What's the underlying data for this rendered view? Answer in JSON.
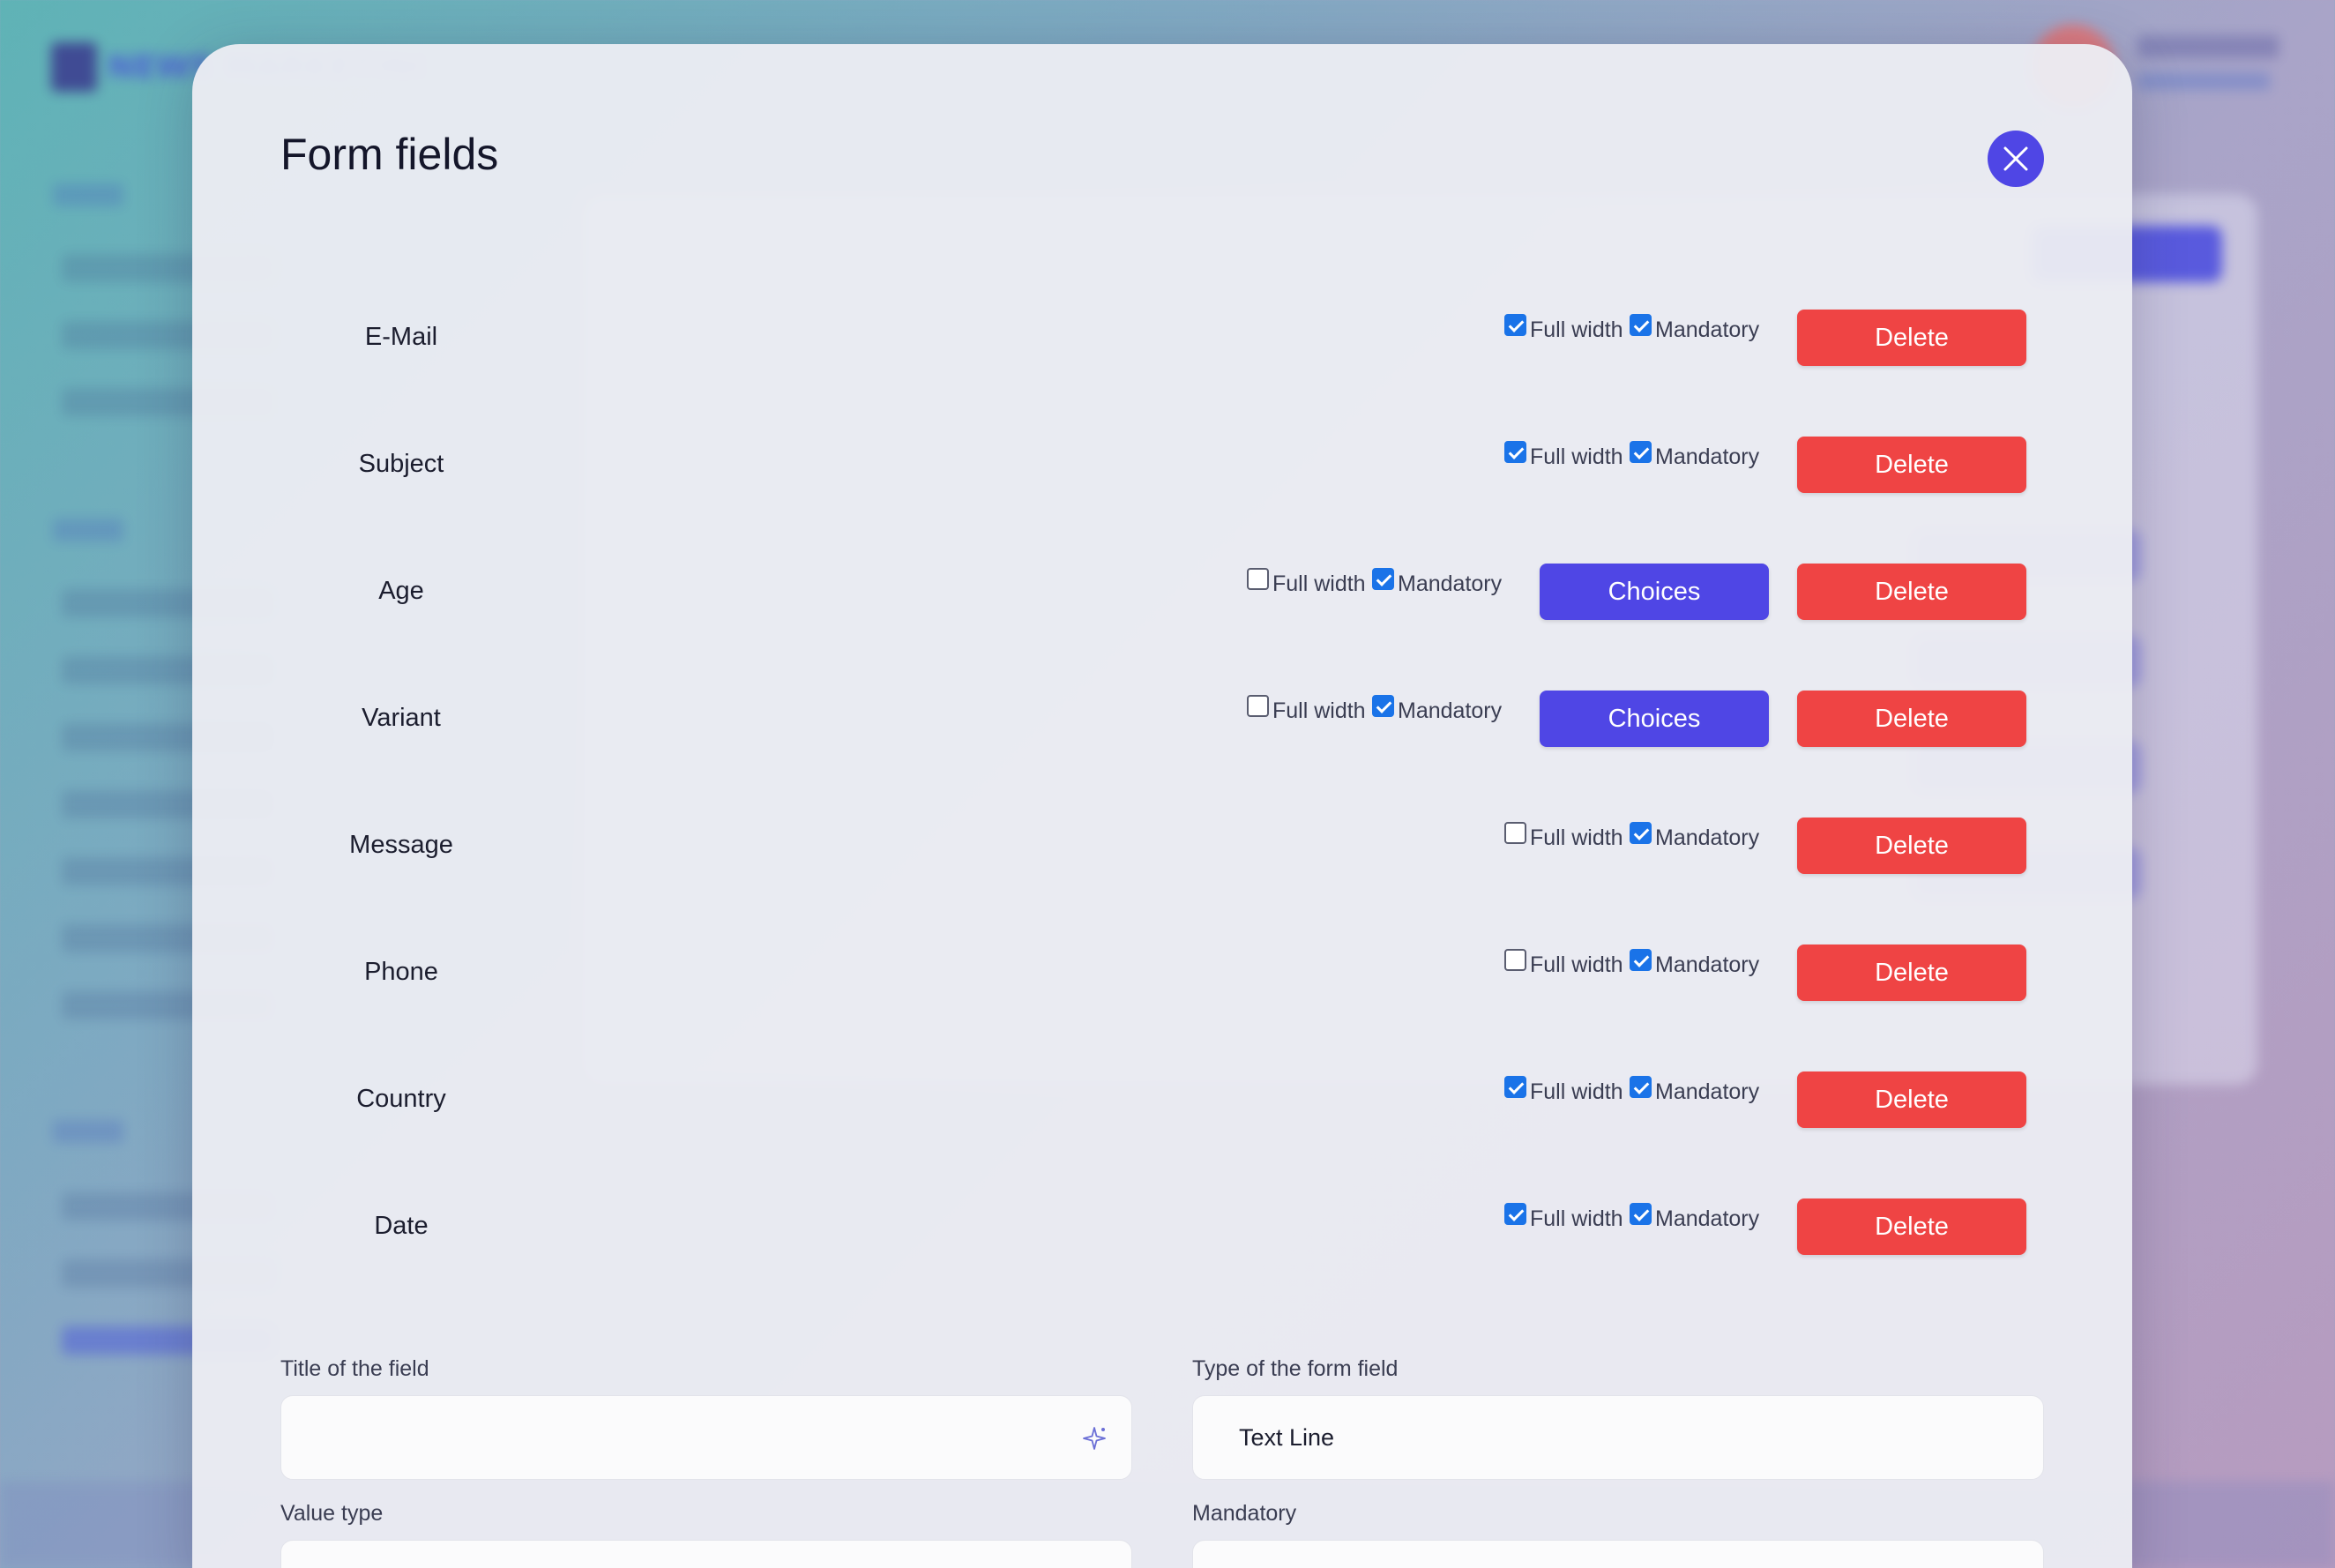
{
  "background": {
    "logo_text": "NEWS MARKETING",
    "user_name": "Marc",
    "user_role": "Administrator"
  },
  "modal": {
    "title": "Form fields",
    "close_icon": "close-icon",
    "option_full_width": "Full width",
    "option_mandatory": "Mandatory",
    "delete_label": "Delete",
    "choices_label": "Choices",
    "fields": [
      {
        "name": "E-Mail",
        "full_width": true,
        "mandatory": true,
        "has_choices": false
      },
      {
        "name": "Subject",
        "full_width": true,
        "mandatory": true,
        "has_choices": false
      },
      {
        "name": "Age",
        "full_width": false,
        "mandatory": true,
        "has_choices": true
      },
      {
        "name": "Variant",
        "full_width": false,
        "mandatory": true,
        "has_choices": true
      },
      {
        "name": "Message",
        "full_width": false,
        "mandatory": true,
        "has_choices": false
      },
      {
        "name": "Phone",
        "full_width": false,
        "mandatory": true,
        "has_choices": false
      },
      {
        "name": "Country",
        "full_width": true,
        "mandatory": true,
        "has_choices": false
      },
      {
        "name": "Date",
        "full_width": true,
        "mandatory": true,
        "has_choices": false
      }
    ],
    "form": {
      "title_label": "Title of the field",
      "title_value": "",
      "type_label": "Type of the form field",
      "type_value": "Text Line",
      "value_type_label": "Value type",
      "mandatory_label": "Mandatory"
    }
  },
  "colors": {
    "accent": "#4f46e5",
    "danger": "#ef4444",
    "checkbox": "#1a73e8"
  }
}
